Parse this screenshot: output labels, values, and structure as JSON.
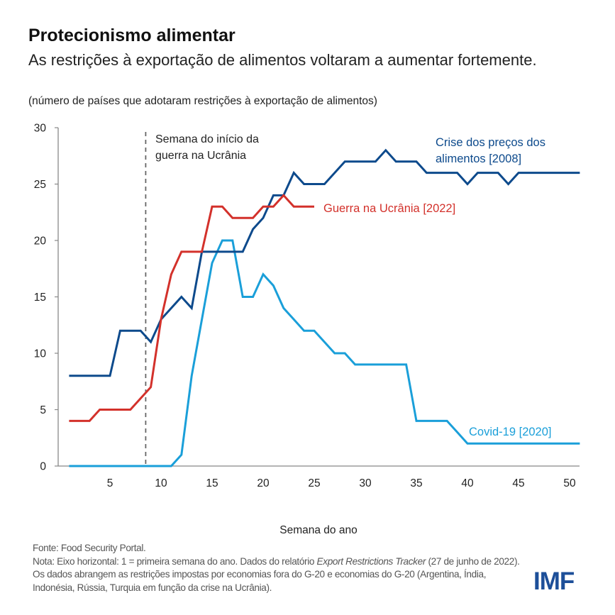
{
  "title": "Protecionismo alimentar",
  "subtitle": "As restrições à exportação de alimentos voltaram a aumentar fortemente.",
  "unit_note": "(número de países que adotaram restrições à exportação de alimentos)",
  "footer": {
    "source": "Fonte: Food Security Portal.",
    "note_prefix": "Nota: Eixo horizontal: 1 = primeira semana do ano. Dados do relatório ",
    "note_italic": "Export Restrictions Tracker",
    "note_rest": "(27 de junho de 2022). Os dados abrangem as restrições impostas por economias  fora do G-20 e economias do G-20 (Argentina, Índia, Indonésia,  Rússia, Turquia em função da crise na Ucrânia)."
  },
  "logo": "IMF",
  "chart_data": {
    "type": "line",
    "title": "",
    "xlabel": "Semana do ano",
    "ylabel": "",
    "xlim": [
      1,
      51
    ],
    "ylim": [
      0,
      30
    ],
    "xticks": [
      5,
      10,
      15,
      20,
      25,
      30,
      35,
      40,
      45,
      50
    ],
    "yticks": [
      0,
      5,
      10,
      15,
      20,
      25,
      30
    ],
    "grid": false,
    "legend": "inline labels",
    "annotation": {
      "x": 8.5,
      "text_line1": "Semana do início da",
      "text_line2": "guerra na Ucrânia"
    },
    "series": [
      {
        "name": "Crise dos preços dos alimentos [2008]",
        "label_line1": "Crise dos preços dos",
        "label_line2": "alimentos [2008]",
        "color": "#0d4a8c",
        "x": [
          1,
          2,
          3,
          4,
          5,
          6,
          7,
          8,
          9,
          10,
          11,
          12,
          13,
          14,
          15,
          16,
          17,
          18,
          19,
          20,
          21,
          22,
          23,
          24,
          25,
          26,
          27,
          28,
          29,
          30,
          31,
          32,
          33,
          34,
          35,
          36,
          37,
          38,
          39,
          40,
          41,
          42,
          43,
          44,
          45,
          46,
          47,
          48,
          49,
          50,
          51
        ],
        "values": [
          8,
          8,
          8,
          8,
          8,
          12,
          12,
          12,
          11,
          13,
          14,
          15,
          14,
          19,
          19,
          19,
          19,
          19,
          21,
          22,
          24,
          24,
          26,
          25,
          25,
          25,
          26,
          27,
          27,
          27,
          27,
          28,
          27,
          27,
          27,
          26,
          26,
          26,
          26,
          25,
          26,
          26,
          26,
          25,
          26,
          26,
          26,
          26,
          26,
          26,
          26
        ]
      },
      {
        "name": "Guerra na Ucrânia [2022]",
        "label_line1": "Guerra na Ucrânia [2022]",
        "color": "#d3312b",
        "x": [
          1,
          2,
          3,
          4,
          5,
          6,
          7,
          8,
          9,
          10,
          11,
          12,
          13,
          14,
          15,
          16,
          17,
          18,
          19,
          20,
          21,
          22,
          23,
          24,
          25
        ],
        "values": [
          4,
          4,
          4,
          5,
          5,
          5,
          5,
          6,
          7,
          13,
          17,
          19,
          19,
          19,
          23,
          23,
          22,
          22,
          22,
          23,
          23,
          24,
          23,
          23,
          23
        ]
      },
      {
        "name": "Covid-19 [2020]",
        "label_line1": "Covid-19 [2020]",
        "color": "#1a9fd9",
        "x": [
          1,
          2,
          3,
          4,
          5,
          6,
          7,
          8,
          9,
          10,
          11,
          12,
          13,
          14,
          15,
          16,
          17,
          18,
          19,
          20,
          21,
          22,
          23,
          24,
          25,
          26,
          27,
          28,
          29,
          30,
          31,
          32,
          33,
          34,
          35,
          36,
          37,
          38,
          39,
          40,
          41,
          42,
          43,
          44,
          45,
          46,
          47,
          48,
          49,
          50,
          51
        ],
        "values": [
          0,
          0,
          0,
          0,
          0,
          0,
          0,
          0,
          0,
          0,
          0,
          1,
          8,
          13,
          18,
          20,
          20,
          15,
          15,
          17,
          16,
          14,
          13,
          12,
          12,
          11,
          10,
          10,
          9,
          9,
          9,
          9,
          9,
          9,
          4,
          4,
          4,
          4,
          3,
          2,
          2,
          2,
          2,
          2,
          2,
          2,
          2,
          2,
          2,
          2,
          2
        ]
      }
    ]
  }
}
